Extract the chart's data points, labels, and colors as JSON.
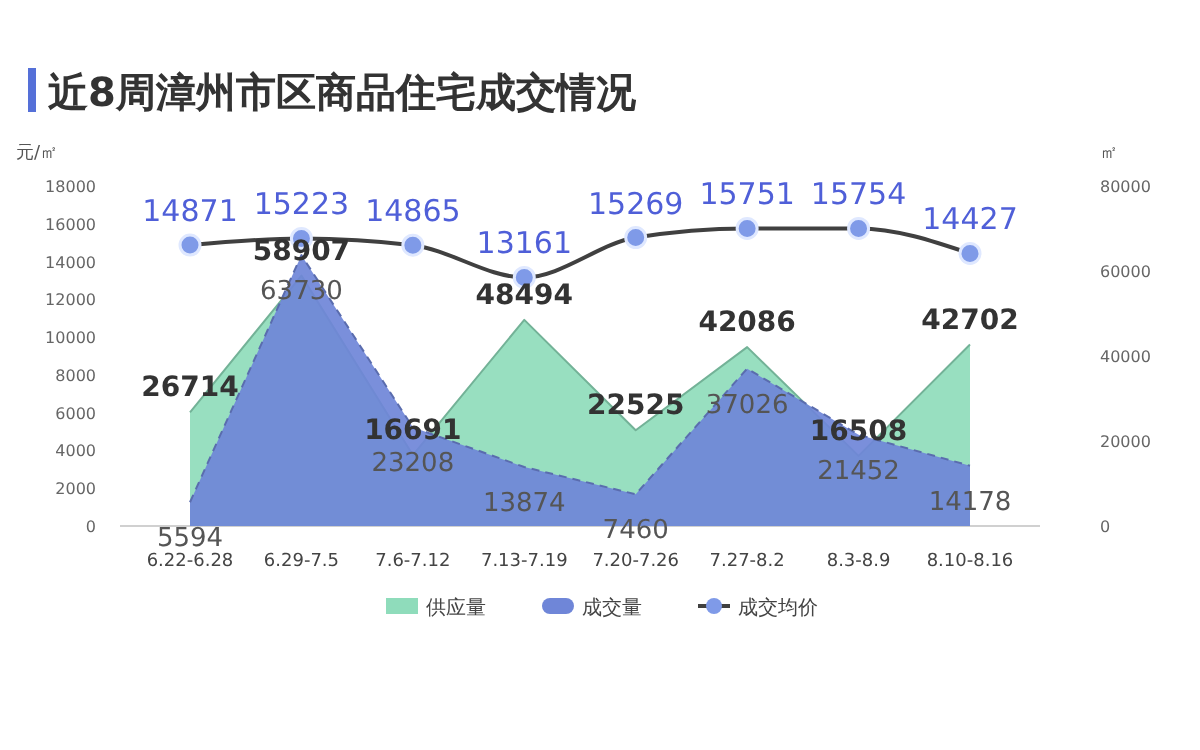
{
  "chart_data": {
    "type": "area",
    "title": "近8周漳州市区商品住宅成交情况",
    "ylabel": "元/㎡",
    "y2label": "㎡",
    "categories": [
      "6.22-6.28",
      "6.29-7.5",
      "7.6-7.12",
      "7.13-7.19",
      "7.20-7.26",
      "7.27-8.2",
      "8.3-8.9",
      "8.10-8.16"
    ],
    "series": [
      {
        "name": "供应量",
        "axis": "y2",
        "color": "#8fdcbb",
        "values": [
          26714,
          58907,
          16691,
          48494,
          22525,
          42086,
          16508,
          42702
        ]
      },
      {
        "name": "成交量",
        "axis": "y2",
        "color": "#6f86d8",
        "line_style": "dashed",
        "values": [
          5594,
          63730,
          23208,
          13874,
          7460,
          37026,
          21452,
          14178
        ]
      },
      {
        "name": "成交均价",
        "type": "line",
        "axis": "y",
        "color": "#404040",
        "marker": "circle",
        "values": [
          14871,
          15223,
          14865,
          13161,
          15269,
          15751,
          15754,
          14427
        ]
      }
    ],
    "ylim": [
      0,
      18000
    ],
    "yticks": [
      0,
      2000,
      4000,
      6000,
      8000,
      10000,
      12000,
      14000,
      16000,
      18000
    ],
    "y2lim": [
      0,
      80000
    ],
    "y2ticks": [
      0,
      20000,
      40000,
      60000,
      80000
    ],
    "data_labels": true,
    "grid": false,
    "legend": "bottom"
  }
}
